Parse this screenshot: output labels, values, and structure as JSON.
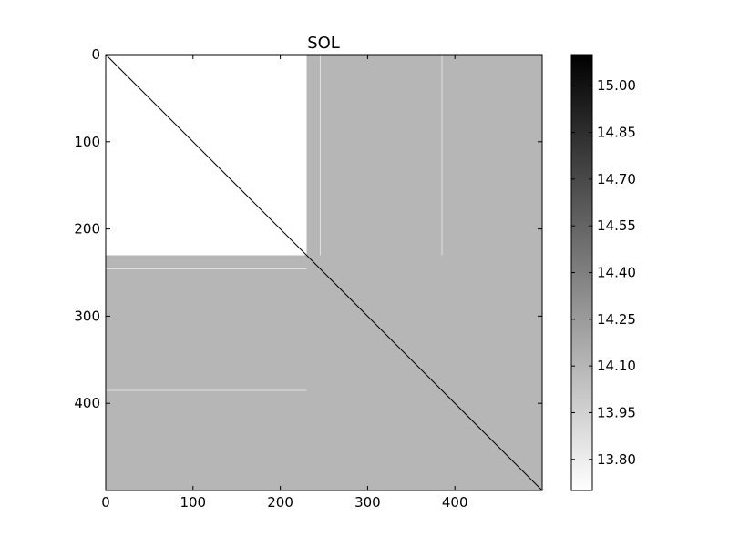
{
  "chart_data": {
    "type": "heatmap",
    "title": "SOL",
    "xlabel": "",
    "ylabel": "",
    "xlim": [
      0,
      500
    ],
    "ylim": [
      500,
      0
    ],
    "x_ticks": [
      0,
      100,
      200,
      300,
      400
    ],
    "y_ticks": [
      0,
      100,
      200,
      300,
      400
    ],
    "x_tick_labels": [
      "0",
      "100",
      "200",
      "300",
      "400"
    ],
    "y_tick_labels": [
      "0",
      "100",
      "200",
      "300",
      "400"
    ],
    "colormap": "gray_r",
    "grid": false,
    "regions": [
      {
        "x": [
          0,
          230
        ],
        "y": [
          0,
          230
        ],
        "value": 13.7
      },
      {
        "x": [
          230,
          500
        ],
        "y": [
          0,
          230
        ],
        "value": 14.1
      },
      {
        "x": [
          0,
          230
        ],
        "y": [
          230,
          500
        ],
        "value": 14.1
      },
      {
        "x": [
          230,
          500
        ],
        "y": [
          230,
          500
        ],
        "value": 14.1
      }
    ],
    "diagonal": {
      "value": 15.1
    },
    "vertical_streaks": [
      {
        "x": 246,
        "y": [
          0,
          230
        ],
        "value": 13.7
      },
      {
        "x": 385,
        "y": [
          0,
          230
        ],
        "value": 13.7
      }
    ],
    "horizontal_streaks": [
      {
        "y": 246,
        "x": [
          0,
          230
        ],
        "value": 13.7
      },
      {
        "y": 385,
        "x": [
          0,
          230
        ],
        "value": 13.7
      }
    ],
    "colorbar": {
      "range": [
        13.7,
        15.1
      ],
      "ticks": [
        13.8,
        13.95,
        14.1,
        14.25,
        14.4,
        14.55,
        14.7,
        14.85,
        15.0
      ],
      "tick_labels": [
        "13.80",
        "13.95",
        "14.10",
        "14.25",
        "14.40",
        "14.55",
        "14.70",
        "14.85",
        "15.00"
      ]
    },
    "colors": {
      "low": "#ffffff",
      "high": "#000000",
      "block": "#a4a4a4"
    }
  }
}
